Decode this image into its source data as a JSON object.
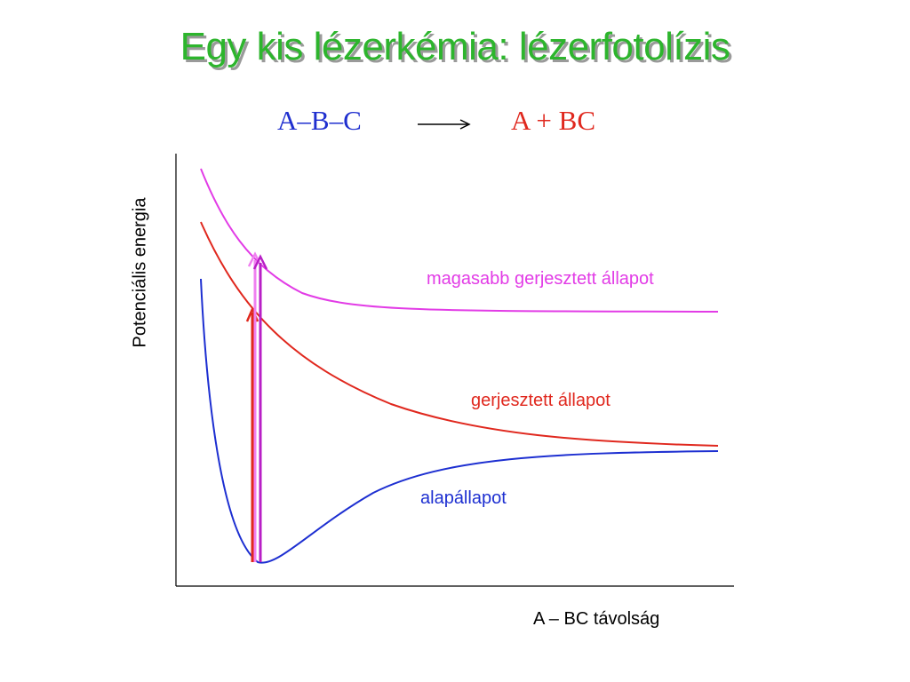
{
  "title": "Egy kis lézerkémia: lézerfotolízis",
  "reaction": {
    "reactant": "A–B–C",
    "product": "A + BC",
    "reactant_color": "#1f2fcf",
    "product_color": "#e0281e"
  },
  "axes": {
    "ylabel": "Potenciális energia",
    "xlabel": "A – BC távolság"
  },
  "curves": {
    "higher_excited": {
      "label": "magasabb gerjesztett állapot",
      "color": "#e23ce6"
    },
    "excited": {
      "label": "gerjesztett állapot",
      "color": "#e0281e"
    },
    "ground": {
      "label": "alapállapot",
      "color": "#1d2fd1"
    }
  },
  "transitions": {
    "to_excited_color": "#e0281e",
    "to_higher_color": "#b81fc6",
    "to_higher_light_color": "#f080f0"
  },
  "title_color": "#2db52d"
}
